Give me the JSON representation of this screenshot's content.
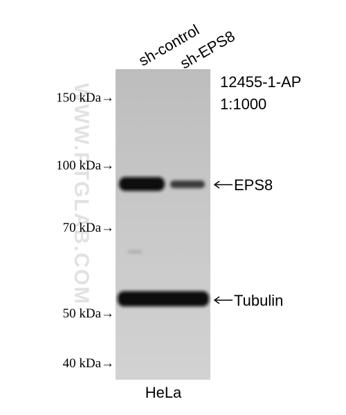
{
  "lanes": [
    "sh-control",
    "sh-EPS8"
  ],
  "markers": [
    "150 kDa→",
    "100 kDa→",
    "70 kDa→",
    "50 kDa→",
    "40 kDa→"
  ],
  "antibody": {
    "catalog": "12455-1-AP",
    "dilution": "1:1000"
  },
  "bands": [
    "EPS8",
    "Tubulin"
  ],
  "cell_line": "HeLa",
  "watermark": "WWW.PTGLAB.COM"
}
